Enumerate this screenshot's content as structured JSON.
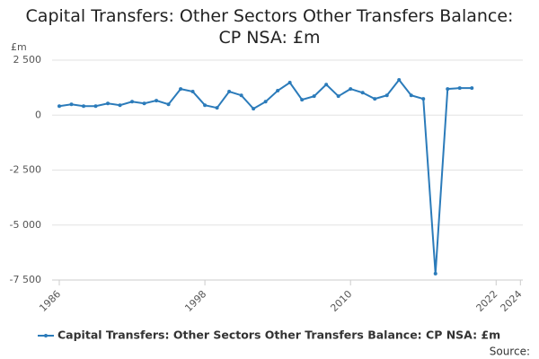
{
  "chart_data": {
    "type": "line",
    "title": "Capital Transfers: Other Sectors Other Transfers Balance: CP NSA: £m",
    "y_unit": "£m",
    "source": "Source:",
    "x": [
      1986,
      1987,
      1988,
      1989,
      1990,
      1991,
      1992,
      1993,
      1994,
      1995,
      1996,
      1997,
      1998,
      1999,
      2000,
      2001,
      2002,
      2003,
      2004,
      2005,
      2006,
      2007,
      2008,
      2009,
      2010,
      2011,
      2012,
      2013,
      2014,
      2015,
      2016,
      2017,
      2018,
      2019,
      2020
    ],
    "series": [
      {
        "name": "Capital Transfers: Other Sectors Other Transfers Balance: CP NSA: £m",
        "color": "#2b7bba",
        "values": [
          410,
          490,
          410,
          410,
          530,
          450,
          610,
          530,
          660,
          490,
          1190,
          1070,
          450,
          330,
          1070,
          900,
          290,
          610,
          1110,
          1480,
          700,
          860,
          1390,
          860,
          1190,
          1020,
          740,
          900,
          1600,
          900,
          740,
          -7210,
          1190,
          1230,
          1230
        ]
      }
    ],
    "xlim": [
      1986,
      2024.2
    ],
    "xticks": [
      1986,
      1998,
      2010,
      2022,
      2024
    ],
    "ylim": [
      -7500,
      2500
    ],
    "yticks": [
      {
        "value": 2500,
        "label": "2 500"
      },
      0,
      {
        "value": -2500,
        "label": "-2 500"
      },
      {
        "value": -5000,
        "label": "-5 000"
      },
      {
        "value": -7500,
        "label": "-7 500"
      }
    ],
    "grid": true
  }
}
